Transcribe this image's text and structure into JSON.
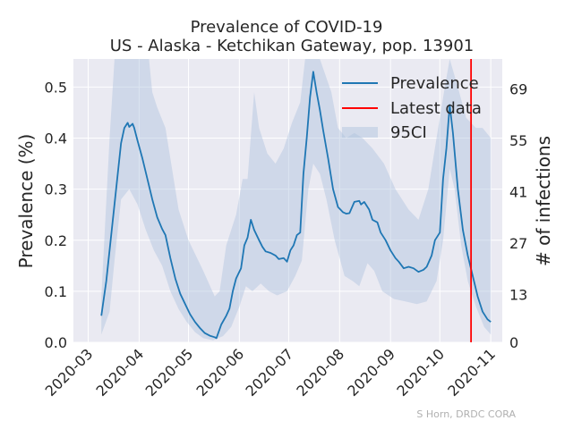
{
  "chart_data": {
    "type": "line",
    "title": "Prevalence of COVID-19",
    "subtitle": "US - Alaska - Ketchikan Gateway, pop. 13901",
    "ylabel": "Prevalence (%)",
    "y2label": "# of infections",
    "xlabel": "",
    "credit": "S Horn, DRDC CORA",
    "ylim": [
      0,
      0.555
    ],
    "y_ticks": [
      0.0,
      0.1,
      0.2,
      0.3,
      0.4,
      0.5
    ],
    "y_tick_labels": [
      "0.0",
      "0.1",
      "0.2",
      "0.3",
      "0.4",
      "0.5"
    ],
    "y2_ticks": [
      0,
      13,
      27,
      41,
      55,
      69
    ],
    "y2_tick_labels": [
      "0",
      "13",
      "27",
      "41",
      "55",
      "69"
    ],
    "x_ticks": [
      "2020-03-01",
      "2020-04-01",
      "2020-05-01",
      "2020-06-01",
      "2020-07-01",
      "2020-08-01",
      "2020-09-01",
      "2020-10-01",
      "2020-11-01"
    ],
    "x_tick_labels": [
      "2020-03",
      "2020-04",
      "2020-05",
      "2020-06",
      "2020-07",
      "2020-08",
      "2020-09",
      "2020-10",
      "2020-11"
    ],
    "xlim": [
      "2020-02-21",
      "2020-11-08"
    ],
    "grid": true,
    "legend_position": "top-right",
    "legend": [
      "Prevalence",
      "Latest data",
      "95CI"
    ],
    "latest_data_date": "2020-10-20",
    "colors": {
      "prevalence": "#1f77b4",
      "latest": "#ff0000",
      "ci": "#b0c4de",
      "background": "#eaeaf2",
      "grid": "#ffffff"
    },
    "series": [
      {
        "name": "Prevalence",
        "points": [
          [
            "2020-03-09",
            0.052
          ],
          [
            "2020-03-12",
            0.12
          ],
          [
            "2020-03-15",
            0.21
          ],
          [
            "2020-03-18",
            0.3
          ],
          [
            "2020-03-21",
            0.39
          ],
          [
            "2020-03-23",
            0.42
          ],
          [
            "2020-03-25",
            0.43
          ],
          [
            "2020-03-26",
            0.422
          ],
          [
            "2020-03-28",
            0.428
          ],
          [
            "2020-03-29",
            0.42
          ],
          [
            "2020-03-31",
            0.395
          ],
          [
            "2020-04-03",
            0.36
          ],
          [
            "2020-04-06",
            0.32
          ],
          [
            "2020-04-09",
            0.28
          ],
          [
            "2020-04-12",
            0.245
          ],
          [
            "2020-04-15",
            0.222
          ],
          [
            "2020-04-17",
            0.21
          ],
          [
            "2020-04-20",
            0.165
          ],
          [
            "2020-04-23",
            0.125
          ],
          [
            "2020-04-26",
            0.095
          ],
          [
            "2020-04-29",
            0.075
          ],
          [
            "2020-05-02",
            0.055
          ],
          [
            "2020-05-05",
            0.04
          ],
          [
            "2020-05-08",
            0.028
          ],
          [
            "2020-05-11",
            0.018
          ],
          [
            "2020-05-14",
            0.013
          ],
          [
            "2020-05-17",
            0.01
          ],
          [
            "2020-05-18",
            0.008
          ],
          [
            "2020-05-21",
            0.035
          ],
          [
            "2020-05-24",
            0.052
          ],
          [
            "2020-05-26",
            0.066
          ],
          [
            "2020-05-28",
            0.1
          ],
          [
            "2020-05-30",
            0.125
          ],
          [
            "2020-06-02",
            0.145
          ],
          [
            "2020-06-04",
            0.19
          ],
          [
            "2020-06-06",
            0.205
          ],
          [
            "2020-06-08",
            0.24
          ],
          [
            "2020-06-10",
            0.22
          ],
          [
            "2020-06-13",
            0.2
          ],
          [
            "2020-06-15",
            0.187
          ],
          [
            "2020-06-17",
            0.178
          ],
          [
            "2020-06-20",
            0.175
          ],
          [
            "2020-06-23",
            0.17
          ],
          [
            "2020-06-25",
            0.163
          ],
          [
            "2020-06-28",
            0.165
          ],
          [
            "2020-06-30",
            0.158
          ],
          [
            "2020-07-02",
            0.18
          ],
          [
            "2020-07-04",
            0.19
          ],
          [
            "2020-07-06",
            0.21
          ],
          [
            "2020-07-08",
            0.215
          ],
          [
            "2020-07-10",
            0.33
          ],
          [
            "2020-07-12",
            0.4
          ],
          [
            "2020-07-14",
            0.48
          ],
          [
            "2020-07-16",
            0.53
          ],
          [
            "2020-07-18",
            0.49
          ],
          [
            "2020-07-20",
            0.455
          ],
          [
            "2020-07-22",
            0.415
          ],
          [
            "2020-07-25",
            0.36
          ],
          [
            "2020-07-28",
            0.3
          ],
          [
            "2020-07-31",
            0.265
          ],
          [
            "2020-08-03",
            0.255
          ],
          [
            "2020-08-05",
            0.252
          ],
          [
            "2020-08-07",
            0.253
          ],
          [
            "2020-08-10",
            0.275
          ],
          [
            "2020-08-13",
            0.277
          ],
          [
            "2020-08-14",
            0.27
          ],
          [
            "2020-08-16",
            0.275
          ],
          [
            "2020-08-19",
            0.26
          ],
          [
            "2020-08-21",
            0.24
          ],
          [
            "2020-08-24",
            0.235
          ],
          [
            "2020-08-26",
            0.215
          ],
          [
            "2020-08-29",
            0.2
          ],
          [
            "2020-09-01",
            0.18
          ],
          [
            "2020-09-04",
            0.165
          ],
          [
            "2020-09-06",
            0.158
          ],
          [
            "2020-09-09",
            0.145
          ],
          [
            "2020-09-12",
            0.148
          ],
          [
            "2020-09-15",
            0.145
          ],
          [
            "2020-09-18",
            0.138
          ],
          [
            "2020-09-21",
            0.142
          ],
          [
            "2020-09-23",
            0.148
          ],
          [
            "2020-09-26",
            0.17
          ],
          [
            "2020-09-28",
            0.2
          ],
          [
            "2020-10-01",
            0.215
          ],
          [
            "2020-10-03",
            0.32
          ],
          [
            "2020-10-05",
            0.38
          ],
          [
            "2020-10-07",
            0.465
          ],
          [
            "2020-10-09",
            0.41
          ],
          [
            "2020-10-12",
            0.3
          ],
          [
            "2020-10-15",
            0.22
          ],
          [
            "2020-10-18",
            0.17
          ],
          [
            "2020-10-21",
            0.13
          ],
          [
            "2020-10-24",
            0.09
          ],
          [
            "2020-10-27",
            0.06
          ],
          [
            "2020-10-30",
            0.045
          ],
          [
            "2020-11-01",
            0.04
          ]
        ]
      },
      {
        "name": "95CI",
        "upper": [
          [
            "2020-03-09",
            0.09
          ],
          [
            "2020-03-14",
            0.4
          ],
          [
            "2020-03-17",
            0.56
          ],
          [
            "2020-03-31",
            0.56
          ],
          [
            "2020-04-07",
            0.56
          ],
          [
            "2020-04-09",
            0.49
          ],
          [
            "2020-04-12",
            0.46
          ],
          [
            "2020-04-17",
            0.42
          ],
          [
            "2020-04-20",
            0.36
          ],
          [
            "2020-04-25",
            0.26
          ],
          [
            "2020-05-01",
            0.2
          ],
          [
            "2020-05-10",
            0.14
          ],
          [
            "2020-05-17",
            0.09
          ],
          [
            "2020-05-20",
            0.1
          ],
          [
            "2020-05-24",
            0.19
          ],
          [
            "2020-05-30",
            0.25
          ],
          [
            "2020-06-03",
            0.32
          ],
          [
            "2020-06-06",
            0.32
          ],
          [
            "2020-06-10",
            0.49
          ],
          [
            "2020-06-13",
            0.42
          ],
          [
            "2020-06-18",
            0.37
          ],
          [
            "2020-06-23",
            0.35
          ],
          [
            "2020-06-28",
            0.38
          ],
          [
            "2020-07-03",
            0.43
          ],
          [
            "2020-07-08",
            0.47
          ],
          [
            "2020-07-11",
            0.56
          ],
          [
            "2020-07-20",
            0.56
          ],
          [
            "2020-07-27",
            0.49
          ],
          [
            "2020-07-31",
            0.42
          ],
          [
            "2020-08-05",
            0.4
          ],
          [
            "2020-08-10",
            0.41
          ],
          [
            "2020-08-15",
            0.4
          ],
          [
            "2020-08-21",
            0.38
          ],
          [
            "2020-08-28",
            0.35
          ],
          [
            "2020-09-04",
            0.3
          ],
          [
            "2020-09-12",
            0.26
          ],
          [
            "2020-09-18",
            0.24
          ],
          [
            "2020-09-24",
            0.3
          ],
          [
            "2020-09-30",
            0.42
          ],
          [
            "2020-10-04",
            0.5
          ],
          [
            "2020-10-07",
            0.555
          ],
          [
            "2020-10-12",
            0.5
          ],
          [
            "2020-10-17",
            0.44
          ],
          [
            "2020-10-23",
            0.42
          ],
          [
            "2020-10-27",
            0.42
          ],
          [
            "2020-11-01",
            0.4
          ]
        ],
        "lower": [
          [
            "2020-03-09",
            0.015
          ],
          [
            "2020-03-14",
            0.06
          ],
          [
            "2020-03-17",
            0.16
          ],
          [
            "2020-03-21",
            0.28
          ],
          [
            "2020-03-26",
            0.3
          ],
          [
            "2020-03-31",
            0.27
          ],
          [
            "2020-04-05",
            0.22
          ],
          [
            "2020-04-10",
            0.18
          ],
          [
            "2020-04-15",
            0.15
          ],
          [
            "2020-04-20",
            0.1
          ],
          [
            "2020-04-25",
            0.065
          ],
          [
            "2020-04-30",
            0.04
          ],
          [
            "2020-05-05",
            0.02
          ],
          [
            "2020-05-10",
            0.008
          ],
          [
            "2020-05-16",
            0.004
          ],
          [
            "2020-05-22",
            0.012
          ],
          [
            "2020-05-27",
            0.03
          ],
          [
            "2020-06-01",
            0.07
          ],
          [
            "2020-06-05",
            0.11
          ],
          [
            "2020-06-09",
            0.1
          ],
          [
            "2020-06-14",
            0.115
          ],
          [
            "2020-06-19",
            0.1
          ],
          [
            "2020-06-24",
            0.092
          ],
          [
            "2020-06-30",
            0.1
          ],
          [
            "2020-07-05",
            0.13
          ],
          [
            "2020-07-09",
            0.16
          ],
          [
            "2020-07-13",
            0.3
          ],
          [
            "2020-07-16",
            0.35
          ],
          [
            "2020-07-20",
            0.33
          ],
          [
            "2020-07-24",
            0.28
          ],
          [
            "2020-07-29",
            0.2
          ],
          [
            "2020-08-04",
            0.13
          ],
          [
            "2020-08-09",
            0.12
          ],
          [
            "2020-08-13",
            0.11
          ],
          [
            "2020-08-18",
            0.155
          ],
          [
            "2020-08-22",
            0.14
          ],
          [
            "2020-08-27",
            0.1
          ],
          [
            "2020-09-03",
            0.085
          ],
          [
            "2020-09-10",
            0.08
          ],
          [
            "2020-09-17",
            0.075
          ],
          [
            "2020-09-23",
            0.08
          ],
          [
            "2020-09-29",
            0.12
          ],
          [
            "2020-10-03",
            0.2
          ],
          [
            "2020-10-07",
            0.34
          ],
          [
            "2020-10-10",
            0.3
          ],
          [
            "2020-10-14",
            0.19
          ],
          [
            "2020-10-18",
            0.12
          ],
          [
            "2020-10-23",
            0.07
          ],
          [
            "2020-10-28",
            0.03
          ],
          [
            "2020-11-01",
            0.015
          ]
        ]
      }
    ]
  }
}
